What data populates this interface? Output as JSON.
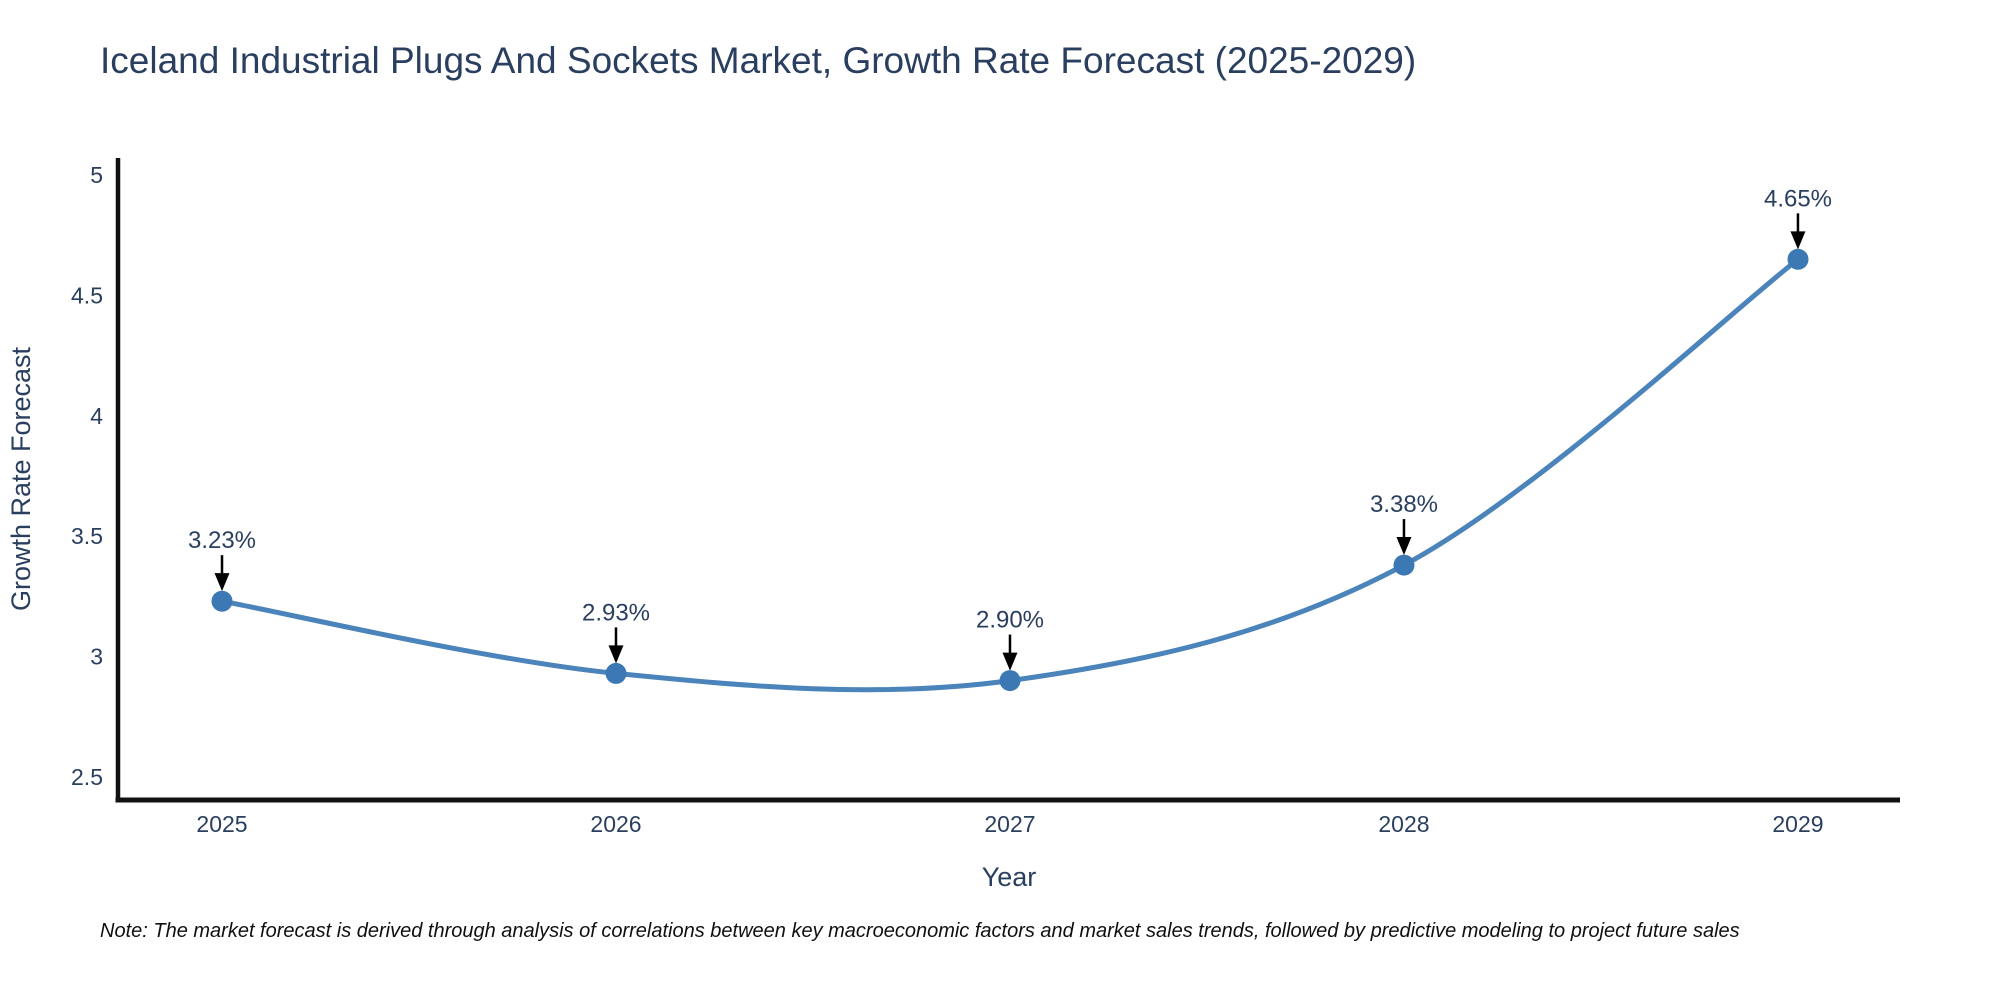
{
  "title": "Iceland Industrial Plugs And Sockets Market, Growth Rate Forecast (2025-2029)",
  "note": "Note: The market forecast is derived through analysis of correlations between key macroeconomic factors and market sales trends, followed by predictive modeling to project future sales",
  "chart_data": {
    "type": "line",
    "title": "Iceland Industrial Plugs And Sockets Market, Growth Rate Forecast (2025-2029)",
    "x": [
      2025,
      2026,
      2027,
      2028,
      2029
    ],
    "values": [
      3.23,
      2.93,
      2.9,
      3.38,
      4.65
    ],
    "point_labels": [
      "3.23%",
      "2.93%",
      "2.90%",
      "3.38%",
      "4.65%"
    ],
    "xlabel": "Year",
    "ylabel": "Growth Rate Forecast",
    "yticks": [
      "2.5",
      "3",
      "3.5",
      "4",
      "4.5",
      "5"
    ],
    "ytick_values": [
      2.5,
      3,
      3.5,
      4,
      4.5,
      5
    ],
    "xlim": [
      2024.736,
      2029.259
    ],
    "ylim": [
      2.404,
      5.071
    ],
    "grid": false,
    "legend": null,
    "line_shape": "spline",
    "line_color": "#4a84ba",
    "marker_color": "#3c78b4",
    "arrow_color": "#000000",
    "axis_color": "#111111",
    "tick_color": "#2a3f5f",
    "label_color": "#2a3f5f"
  }
}
